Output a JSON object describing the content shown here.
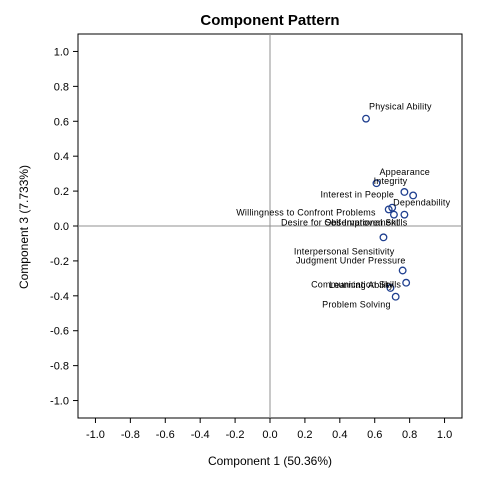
{
  "chart_data": {
    "type": "scatter",
    "title": "Component Pattern",
    "xlabel": "Component 1 (50.36%)",
    "ylabel": "Component 3 (7.733%)",
    "xlim": [
      -1.1,
      1.1
    ],
    "ylim": [
      -1.1,
      1.1
    ],
    "xticks": [
      "-1.0",
      "-0.8",
      "-0.6",
      "-0.4",
      "-0.2",
      "0.0",
      "0.2",
      "0.4",
      "0.6",
      "0.8",
      "1.0"
    ],
    "yticks": [
      "1.0",
      "0.8",
      "0.6",
      "0.4",
      "0.2",
      "0.0",
      "-0.2",
      "-0.4",
      "-0.6",
      "-0.8",
      "-1.0"
    ],
    "reference_lines": {
      "x": 0,
      "y": 0
    },
    "grid": false,
    "marker_color": "#1f3f8f",
    "points": [
      {
        "label": "Physical Ability",
        "x": 0.55,
        "y": 0.615
      },
      {
        "label": "Appearance",
        "x": 0.61,
        "y": 0.245
      },
      {
        "label": "Integrity",
        "x": 0.77,
        "y": 0.195
      },
      {
        "label": "Interest in People",
        "x": 0.82,
        "y": 0.175
      },
      {
        "label": "Dependability",
        "x": 0.7,
        "y": 0.105
      },
      {
        "label": "Willingness to Confront Problems",
        "x": 0.68,
        "y": 0.095
      },
      {
        "label": "Observational Skills",
        "x": 0.77,
        "y": 0.065
      },
      {
        "label": "Desire for Self-Improvement",
        "x": 0.71,
        "y": 0.065
      },
      {
        "label": "Interpersonal Sensitivity",
        "x": 0.65,
        "y": -0.065
      },
      {
        "label": "Judgment Under Pressure",
        "x": 0.76,
        "y": -0.255
      },
      {
        "label": "Communication Skills",
        "x": 0.78,
        "y": -0.325
      },
      {
        "label": "Learning Ability",
        "x": 0.69,
        "y": -0.355
      },
      {
        "label": "Problem Solving",
        "x": 0.72,
        "y": -0.405
      }
    ]
  }
}
